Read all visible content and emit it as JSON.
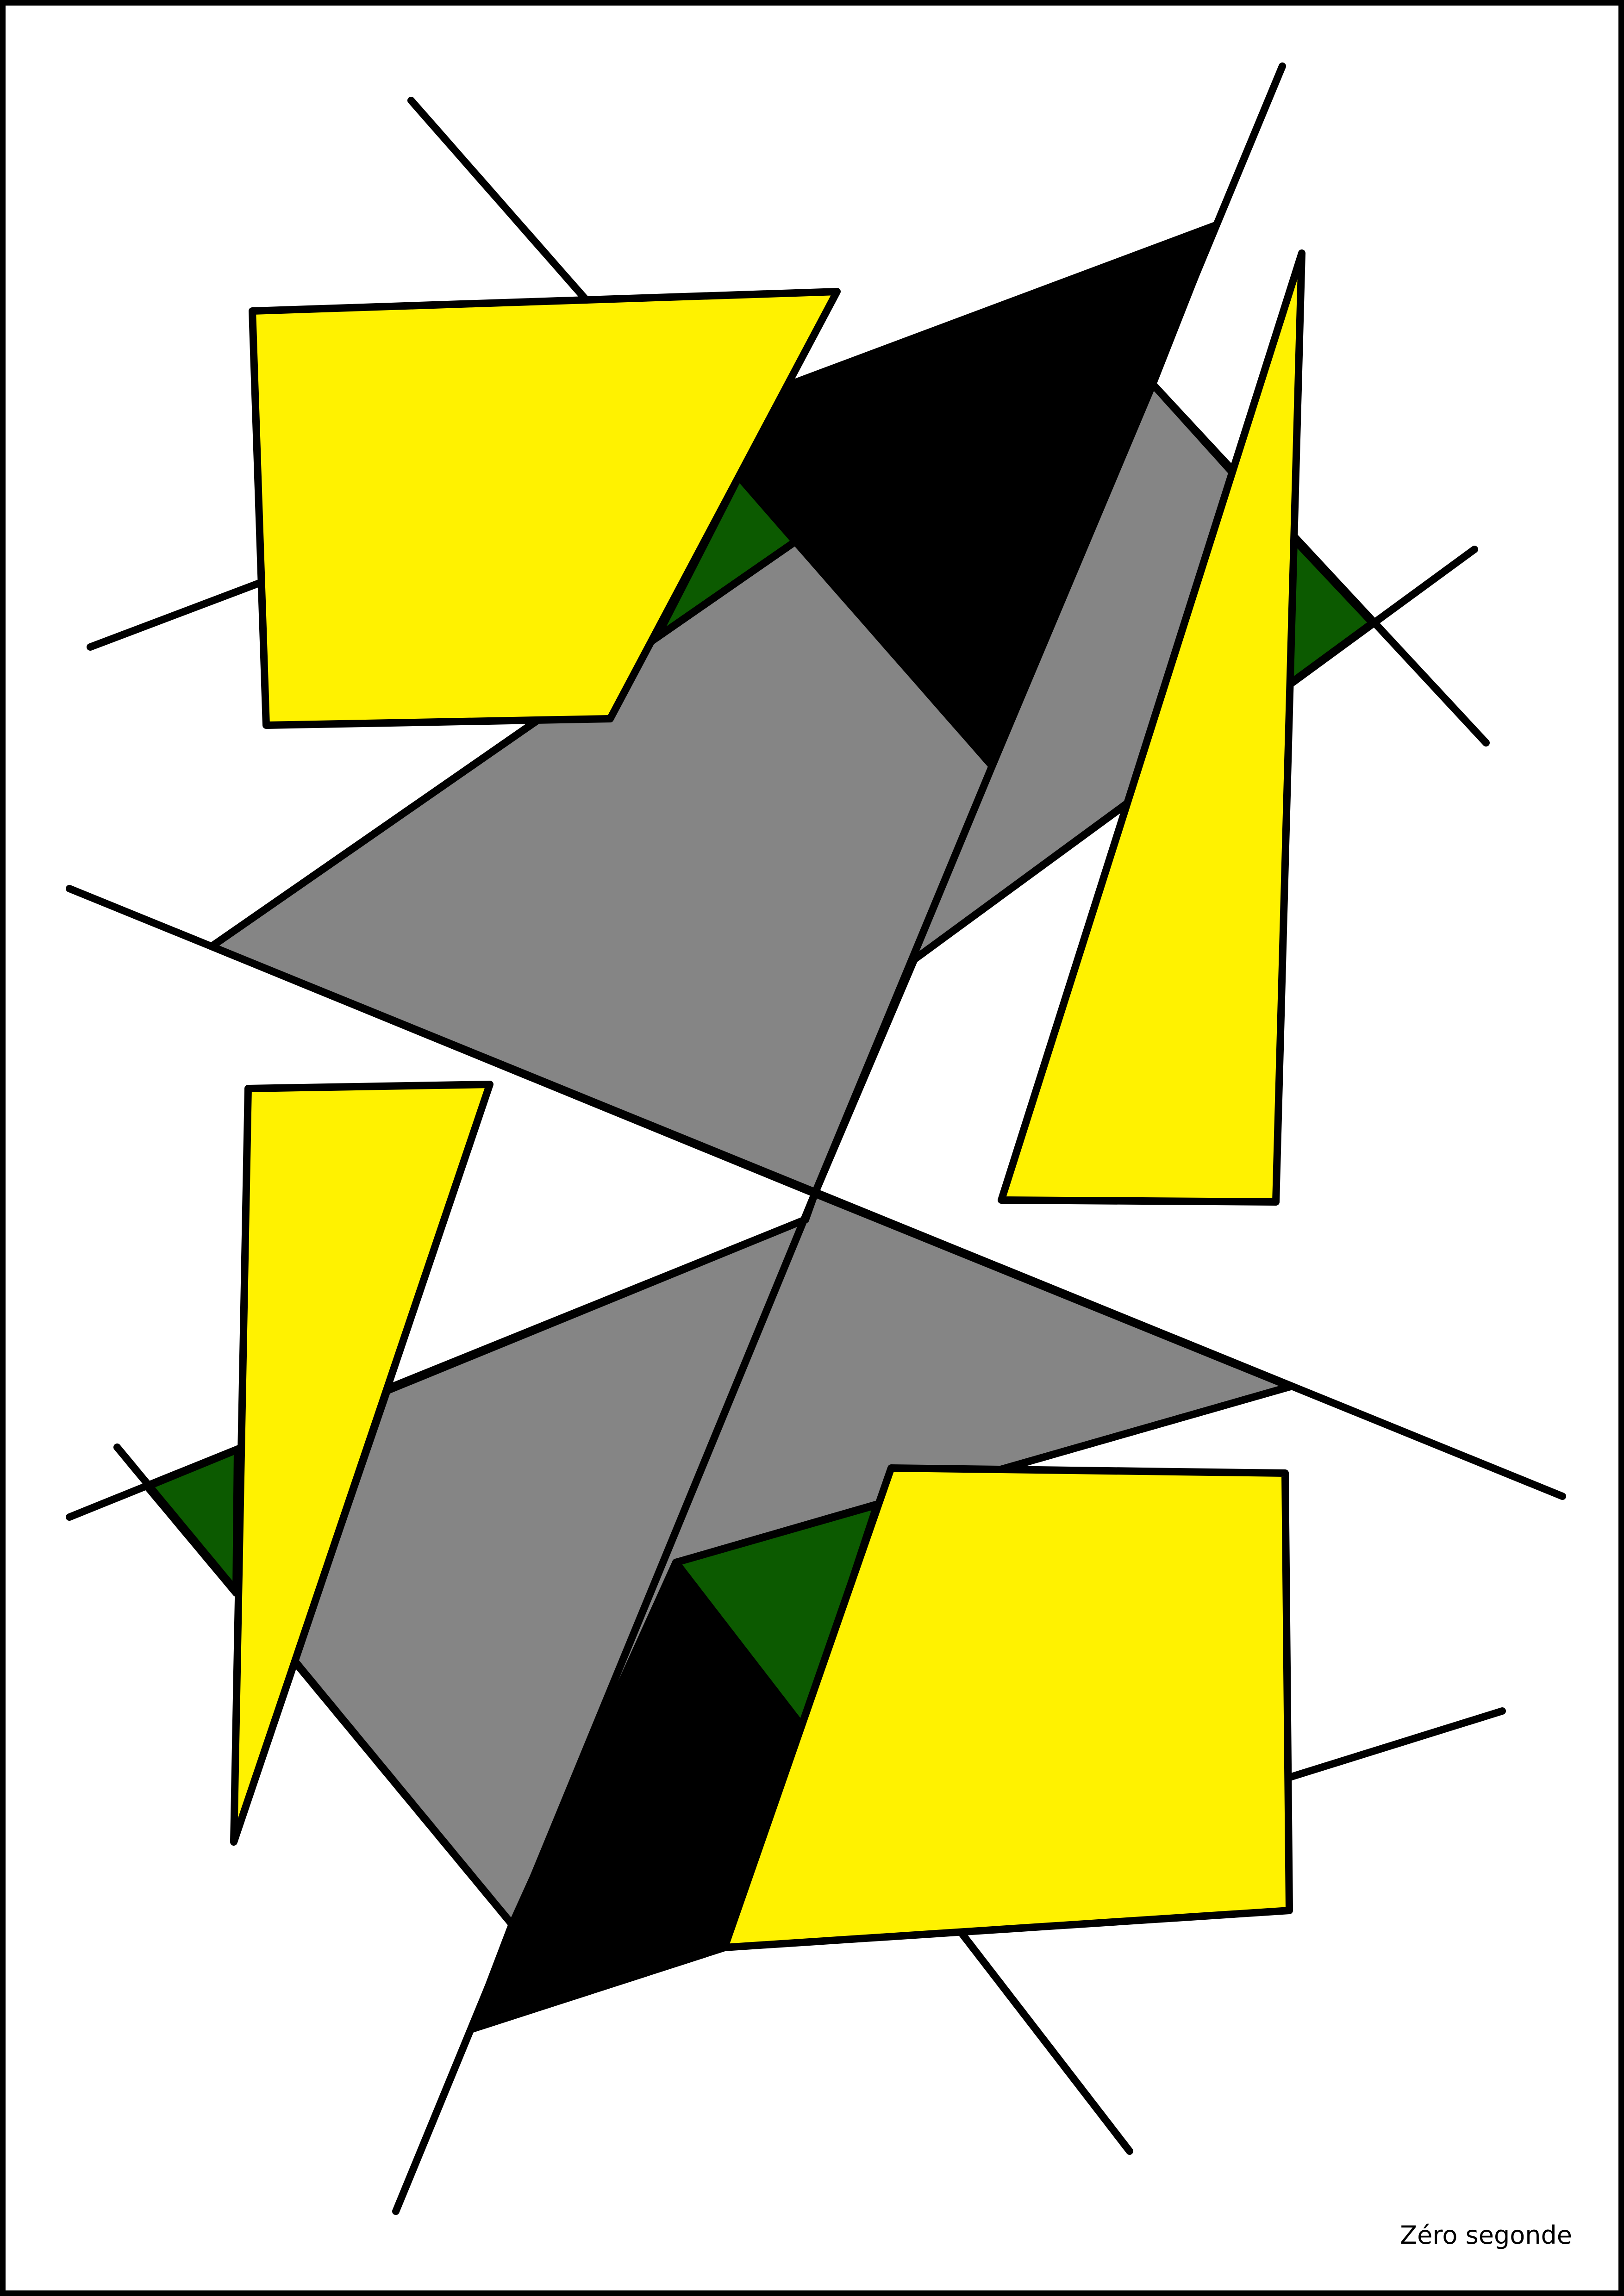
{
  "caption": "Zéro segonde",
  "colors": {
    "background": "#ffffff",
    "frame": "#000000",
    "outline": "#000000",
    "yellow": "#fff200",
    "gray": "#858585",
    "green": "#0c5a00",
    "black": "#000000"
  }
}
